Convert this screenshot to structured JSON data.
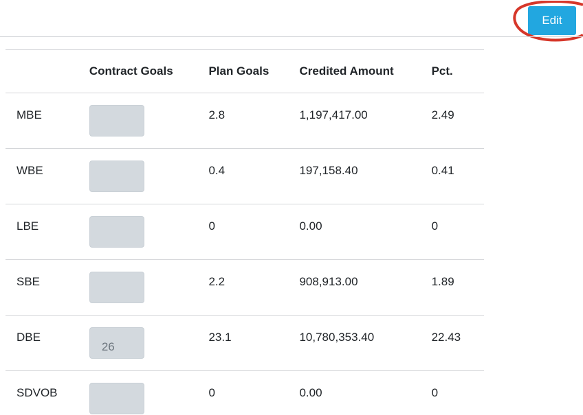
{
  "toolbar": {
    "edit_label": "Edit"
  },
  "table": {
    "headers": [
      "",
      "Contract Goals",
      "Plan Goals",
      "Credited Amount",
      "Pct."
    ],
    "rows": [
      {
        "label": "MBE",
        "contract_goal": "",
        "plan_goal": "2.8",
        "credited_amount": "1,197,417.00",
        "pct": "2.49"
      },
      {
        "label": "WBE",
        "contract_goal": "",
        "plan_goal": "0.4",
        "credited_amount": "197,158.40",
        "pct": "0.41"
      },
      {
        "label": "LBE",
        "contract_goal": "",
        "plan_goal": "0",
        "credited_amount": "0.00",
        "pct": "0"
      },
      {
        "label": "SBE",
        "contract_goal": "",
        "plan_goal": "2.2",
        "credited_amount": "908,913.00",
        "pct": "1.89"
      },
      {
        "label": "DBE",
        "contract_goal": "26",
        "plan_goal": "23.1",
        "credited_amount": "10,780,353.40",
        "pct": "22.43"
      },
      {
        "label": "SDVOB",
        "contract_goal": "",
        "plan_goal": "0",
        "credited_amount": "0.00",
        "pct": "0"
      }
    ]
  },
  "colors": {
    "edit_button": "#22a7e0",
    "highlight_ring": "#d6372a",
    "input_disabled_bg": "#d3d9de"
  }
}
